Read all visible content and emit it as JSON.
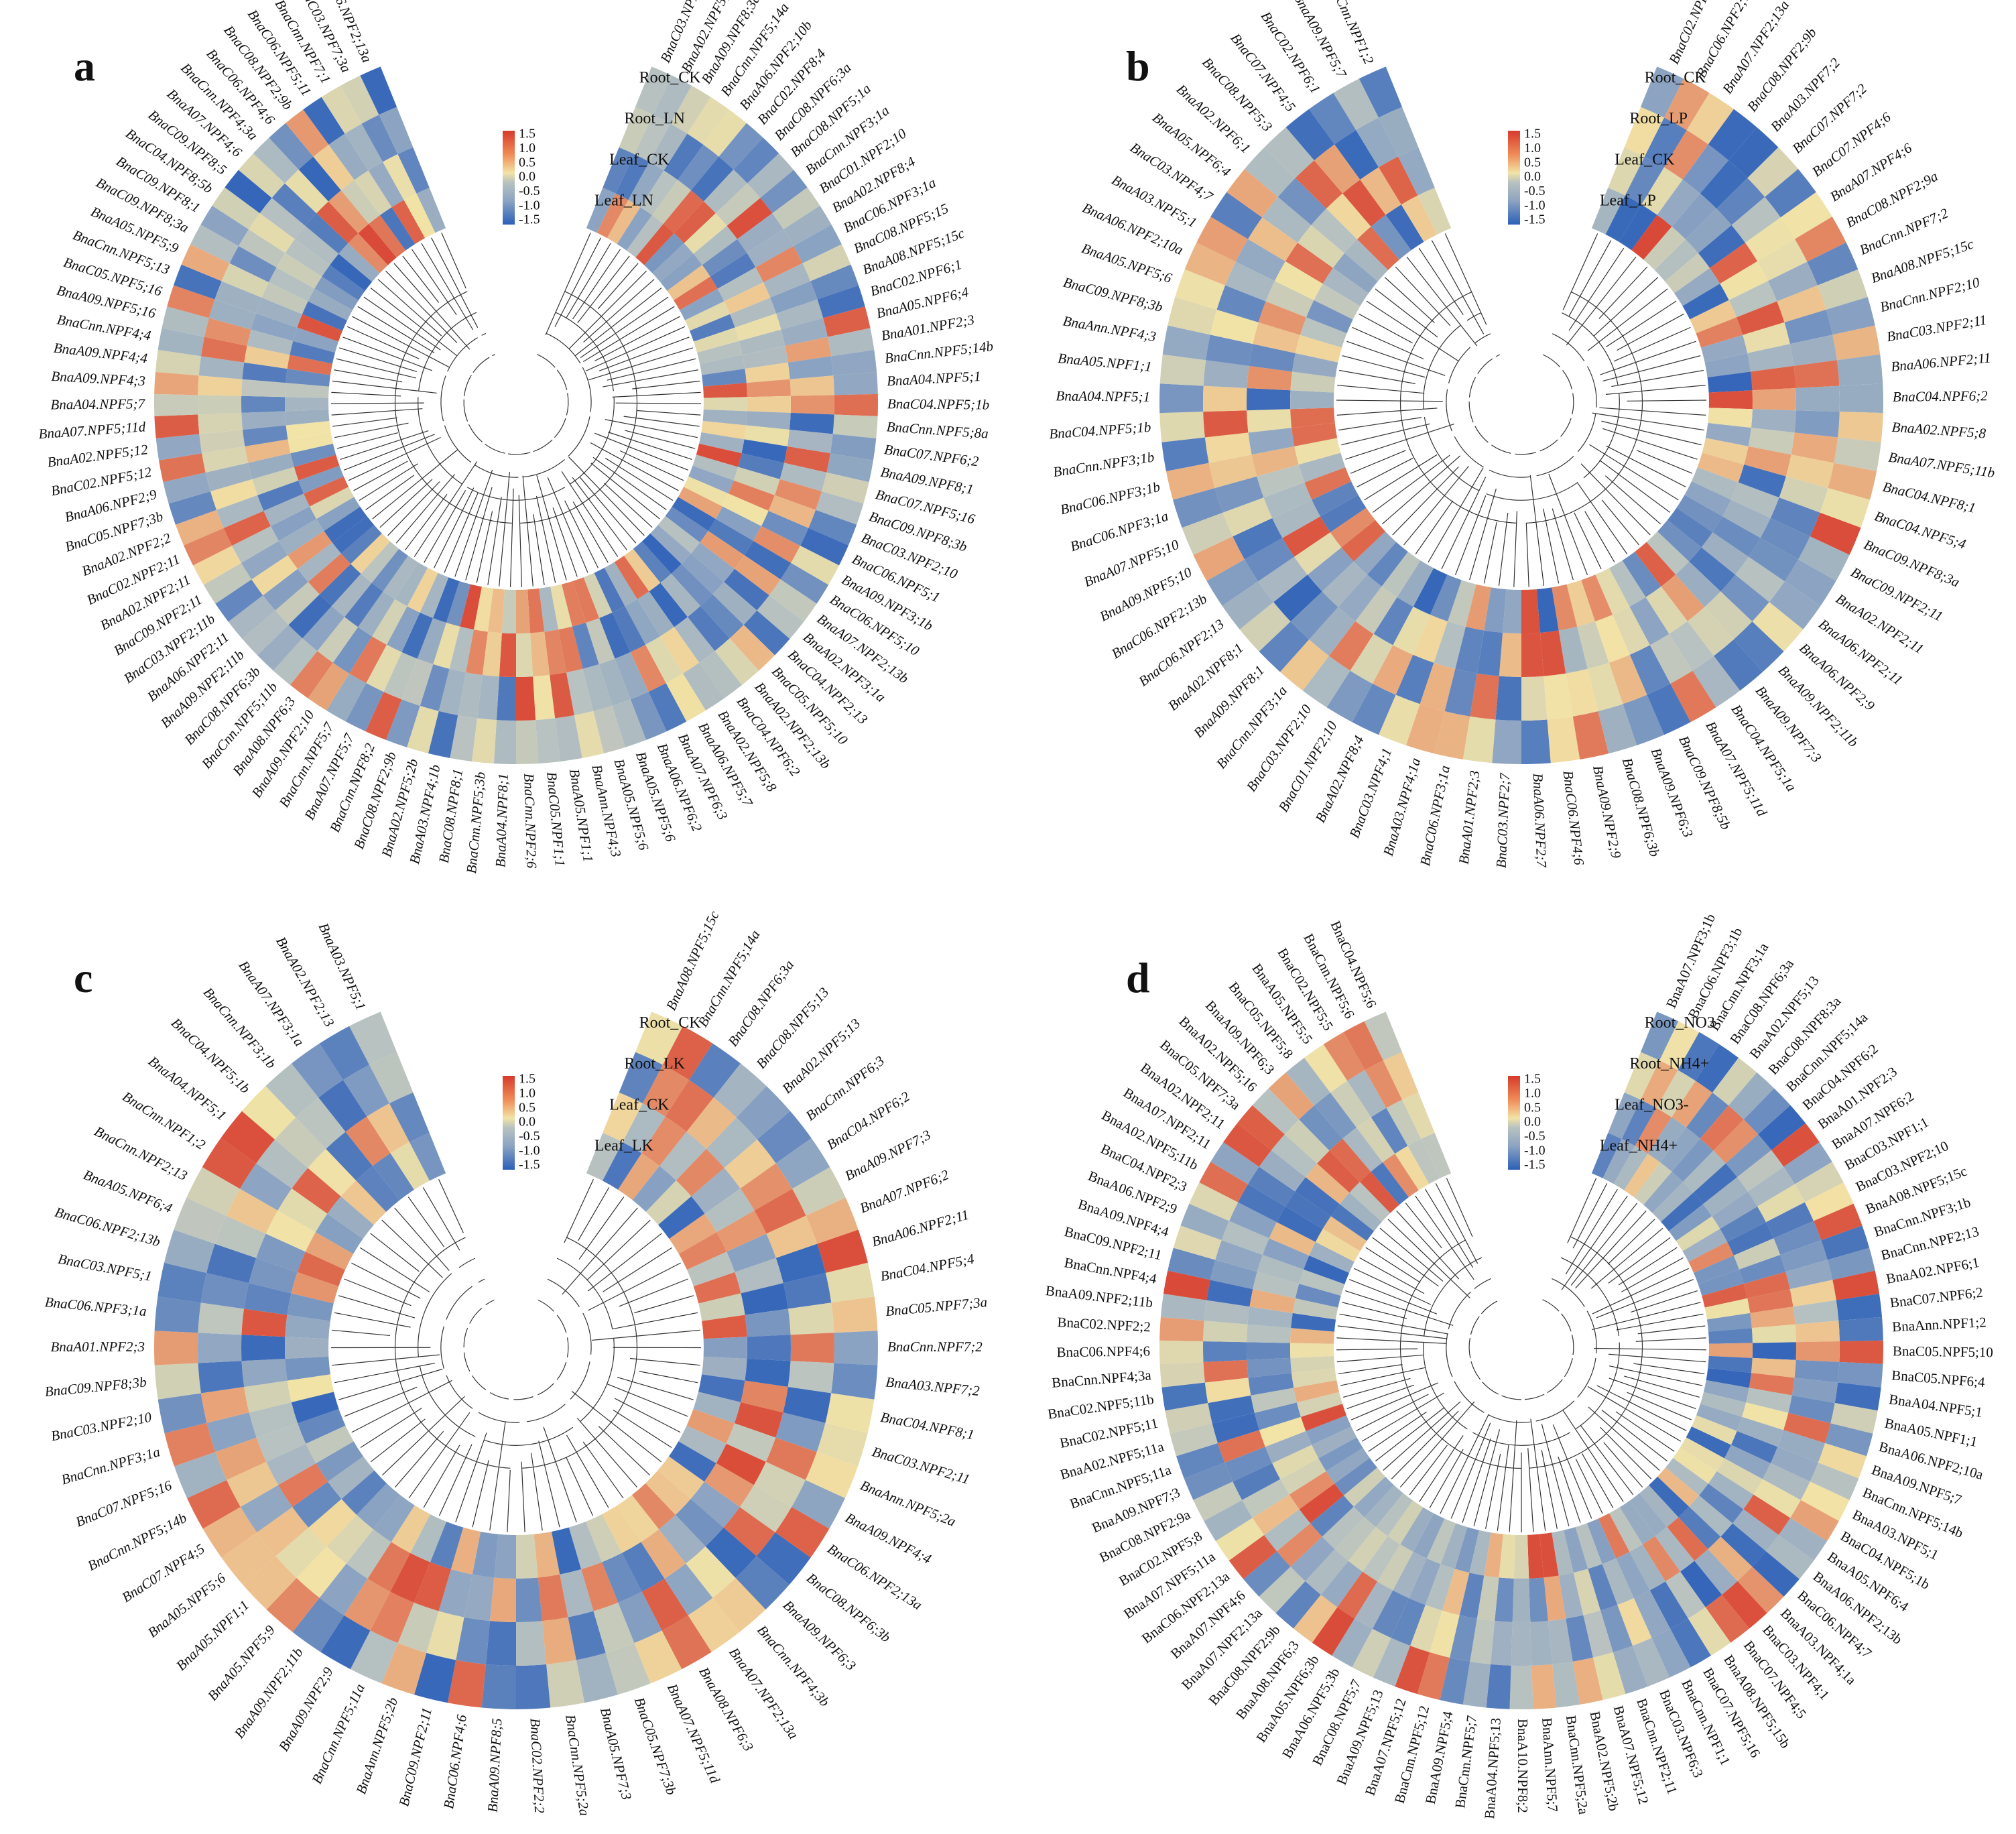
{
  "colors": {
    "scale_low": "#2b5fb8",
    "scale_mid_low": "#8ba3c2",
    "scale_mid": "#b8c2c0",
    "scale_mid_high": "#f2e3a6",
    "scale_high": "#d63a2c"
  },
  "legend_ticks": [
    "1.5",
    "1.0",
    "0.5",
    "0.0",
    "-0.5",
    "-1.0",
    "-1.5"
  ],
  "chart_data": [
    {
      "type": "heatmap",
      "layout": "circular",
      "panel": "a",
      "tracks": [
        "Root_CK",
        "Root_LN",
        "Leaf_CK",
        "Leaf_LN"
      ],
      "color_range": [
        -1.5,
        1.5
      ],
      "left_genes": [
        "BnaC06.NPF2;13a",
        "BnaC03.NPF7;3a",
        "BnaCnn.NPF7;1",
        "BnaC06.NPF5;11",
        "BnaC08.NPF2;9b",
        "BnaC06.NPF4;6",
        "BnaCnn.NPF4;3a",
        "BnaA07.NPF4;6",
        "BnaC09.NPF8;5",
        "BnaC04.NPF8;5b",
        "BnaC09.NPF8;1",
        "BnaC09.NPF8;3a",
        "BnaA05.NPF5;9",
        "BnaCnn.NPF5;13",
        "BnaC05.NPF5;16",
        "BnaA09.NPF5;16",
        "BnaCnn.NPF4;4",
        "BnaA09.NPF4;4",
        "BnaA09.NPF4;3",
        "BnaA04.NPF5;7",
        "BnaA07.NPF5;11d",
        "BnaA02.NPF5;12",
        "BnaC02.NPF5;12",
        "BnaA06.NPF2;9",
        "BnaC05.NPF7;3b",
        "BnaA02.NPF2;2",
        "BnaC02.NPF2;11",
        "BnaA02.NPF2;11",
        "BnaC09.NPF2;11",
        "BnaC03.NPF2;11b",
        "BnaA06.NPF2;11",
        "BnaA09.NPF2;11b",
        "BnaC08.NPF6;3b",
        "BnaCnn.NPF5;11b",
        "BnaA08.NPF6;3",
        "BnaA09.NPF2;10",
        "BnaCnn.NPF5;7",
        "BnaA07.NPF5;7",
        "BnaCnn.NPF8;2",
        "BnaC08.NPF2;9b",
        "BnaA02.NPF5;2b",
        "BnaA03.NPF4;1b",
        "BnaC08.NPF8;1",
        "BnaCnn.NPF5;3b",
        "BnaA04.NPF8;1",
        "BnaCnn.NPF2;6",
        "BnaC05.NPF1;1",
        "BnaA05.NPF1;1",
        "BnaAnn.NPF4;3",
        "BnaA05.NPF5;6"
      ],
      "right_genes": [
        "BnaC03.NPF1;1",
        "BnaA02.NPF5;13",
        "BnaA09.NPF8;3a",
        "BnaCnn.NPF5;14a",
        "BnaA06.NPF2;10b",
        "BnaC02.NPF8;4",
        "BnaC08.NPF6;3a",
        "BnaC08.NPF5;1a",
        "BnaCnn.NPF3;1a",
        "BnaC01.NPF2;10",
        "BnaA02.NPF8;4",
        "BnaC06.NPF3;1a",
        "BnaC08.NPF5;15",
        "BnaA08.NPF5;15c",
        "BnaC02.NPF6;1",
        "BnaA05.NPF6;4",
        "BnaA01.NPF2;3",
        "BnaCnn.NPF5;14b",
        "BnaA04.NPF5;1",
        "BnaC04.NPF5;1b",
        "BnaCnn.NPF5;8a",
        "BnaC07.NPF6;2",
        "BnaA09.NPF8;1",
        "BnaC07.NPF5;16",
        "BnaC09.NPF8;3b",
        "BnaC03.NPF2;10",
        "BnaC06.NPF5;1",
        "BnaA09.NPF3;1b",
        "BnaC06.NPF5;10",
        "BnaA07.NPF2;13b",
        "BnaA02.NPF3;1a",
        "BnaC04.NPF2;13",
        "BnaC05.NPF5;10",
        "BnaA02.NPF2;13b",
        "BnaC04.NPF6;2",
        "BnaA02.NPF5;8",
        "BnaA06.NPF5;7",
        "BnaA07.NPF6;3",
        "BnaA06.NPF6;2",
        "BnaA05.NPF5;6"
      ]
    },
    {
      "type": "heatmap",
      "layout": "circular",
      "panel": "b",
      "tracks": [
        "Root_CK",
        "Root_LP",
        "Leaf_CK",
        "Leaf_LP"
      ],
      "color_range": [
        -1.5,
        1.5
      ],
      "left_genes": [
        "BnaCnn.NPF1;2",
        "BnaA09.NPF5;7",
        "BnaC02.NPF6;1",
        "BnaC07.NPF4;5",
        "BnaC08.NPF5;3",
        "BnaA02.NPF6;1",
        "BnaA05.NPF6;4",
        "BnaC03.NPF4;7",
        "BnaA03.NPF5;1",
        "BnaA06.NPF2;10a",
        "BnaA05.NPF5;6",
        "BnaC09.NPF8;3b",
        "BnaAnn.NPF4;3",
        "BnaA05.NPF1;1",
        "BnaA04.NPF5;1",
        "BnaC04.NPF5;1b",
        "BnaCnn.NPF3;1b",
        "BnaC06.NPF3;1b",
        "BnaC06.NPF3;1a",
        "BnaA07.NPF5;10",
        "BnaA09.NPF5;10",
        "BnaC06.NPF2;13b",
        "BnaC06.NPF2;13",
        "BnaA02.NPF8;1",
        "BnaA09.NPF8;1",
        "BnaCnn.NPF3;1a",
        "BnaC03.NPF2;10",
        "BnaC01.NPF2;10",
        "BnaA02.NPF8;4",
        "BnaC03.NPF4;1",
        "BnaA03.NPF4;1a",
        "BnaC06.NPF3;1a",
        "BnaA01.NPF2;3",
        "BnaC03.NPF2;7",
        "BnaA06.NPF2;7",
        "BnaC06.NPF4;6",
        "BnaA09.NPF2;9",
        "BnaC08.NPF6;3b",
        "BnaA09.NPF6;3",
        "BnaC09.NPF8;5b",
        "BnaA07.NPF5;11d"
      ],
      "right_genes": [
        "BnaC02.NPF5;3",
        "BnaC06.NPF2;13a",
        "BnaA07.NPF2;13a",
        "BnaC08.NPF2;9b",
        "BnaA03.NPF7;2",
        "BnaC07.NPF7;2",
        "BnaC07.NPF4;6",
        "BnaA07.NPF4;6",
        "BnaC08.NPF2;9a",
        "BnaCnn.NPF7;2",
        "BnaA08.NPF5;15c",
        "BnaCnn.NPF2;10",
        "BnaC03.NPF2;11",
        "BnaA06.NPF2;11",
        "BnaC04.NPF6;2",
        "BnaA02.NPF5;8",
        "BnaA07.NPF5;11b",
        "BnaC04.NPF8;1",
        "BnaC04.NPF5;4",
        "BnaC09.NPF8;3a",
        "BnaC09.NPF2;11",
        "BnaA02.NPF2;11",
        "BnaA06.NPF2;11",
        "BnaA06.NPF2;9",
        "BnaA09.NPF2;11b",
        "BnaA09.NPF7;3",
        "BnaC04.NPF5;1a"
      ]
    },
    {
      "type": "heatmap",
      "layout": "circular",
      "panel": "c",
      "tracks": [
        "Root_CK",
        "Root_LK",
        "Leaf_CK",
        "Leaf_LK"
      ],
      "color_range": [
        -1.5,
        1.5
      ],
      "left_genes": [
        "BnaA03.NPF5;1",
        "BnaA02.NPF2;13",
        "BnaA07.NPF3;1a",
        "BnaCnn.NPF3;1b",
        "BnaC04.NPF5;1b",
        "BnaA04.NPF5;1",
        "BnaCnn.NPF1;2",
        "BnaCnn.NPF2;13",
        "BnaA05.NPF6;4",
        "BnaC06.NPF2;13b",
        "BnaC03.NPF5;1",
        "BnaC06.NPF3;1a",
        "BnaA01.NPF2;3",
        "BnaC09.NPF8;3b",
        "BnaC03.NPF2;10",
        "BnaCnn.NPF3;1a",
        "BnaC07.NPF5;16",
        "BnaCnn.NPF5;14b",
        "BnaC07.NPF4;5",
        "BnaA05.NPF5;6",
        "BnaA05.NPF1;1",
        "BnaA05.NPF5;9",
        "BnaA09.NPF2;11b",
        "BnaA09.NPF2;9",
        "BnaCnn.NPF5;11a",
        "BnaAnn.NPF5;2b",
        "BnaC09.NPF2;11",
        "BnaC06.NPF4;6",
        "BnaA09.NPF8;5",
        "BnaC02.NPF2;2",
        "BnaCnn.NPF5;2a",
        "BnaA05.NPF7;3",
        "BnaC05.NPF7;3b",
        "BnaA07.NPF5;11d"
      ],
      "right_genes": [
        "BnaA08.NPF5;15c",
        "BnaCnn.NPF5;14a",
        "BnaC08.NPF6;3a",
        "BnaC08.NPF5;13",
        "BnaA02.NPF5;13",
        "BnaCnn.NPF6;3",
        "BnaC04.NPF6;2",
        "BnaA09.NPF7;3",
        "BnaA07.NPF6;2",
        "BnaA06.NPF2;11",
        "BnaC04.NPF5;4",
        "BnaC05.NPF7;3a",
        "BnaCnn.NPF7;2",
        "BnaA03.NPF7;2",
        "BnaC04.NPF8;1",
        "BnaC03.NPF2;11",
        "BnaAnn.NPF5;2a",
        "BnaA09.NPF4;4",
        "BnaC06.NPF2;13a",
        "BnaC08.NPF6;3b",
        "BnaA09.NPF6;3",
        "BnaCnn.NPF4;3b",
        "BnaA07.NPF2;13a",
        "BnaA08.NPF6;3"
      ]
    },
    {
      "type": "heatmap",
      "layout": "circular",
      "panel": "d",
      "tracks": [
        "Root_NO3-",
        "Root_NH4+",
        "Leaf_NO3-",
        "Leaf_NH4+"
      ],
      "color_range": [
        -1.5,
        1.5
      ],
      "left_genes": [
        "BnaC04.NPF5;6",
        "BnaCnn.NPF5;6",
        "BnaC02.NPF5;5",
        "BnaA05.NPF5;5",
        "BnaC05.NPF5;8",
        "BnaA09.NPF6;3",
        "BnaA02.NPF5;16",
        "BnaC05.NPF7;3a",
        "BnaA02.NPF2;11",
        "BnaA07.NPF2;11",
        "BnaA02.NPF5;11b",
        "BnaC04.NPF2;3",
        "BnaA06.NPF2;9",
        "BnaA09.NPF4;4",
        "BnaC09.NPF2;11",
        "BnaCnn.NPF4;4",
        "BnaA09.NPF2;11b",
        "BnaC02.NPF2;2",
        "BnaC06.NPF4;6",
        "BnaCnn.NPF4;3a",
        "BnaC02.NPF5;11b",
        "BnaC02.NPF5;11",
        "BnaA02.NPF5;11a",
        "BnaCnn.NPF5;11a",
        "BnaA09.NPF7;3",
        "BnaC08.NPF2;9a",
        "BnaC02.NPF5;8",
        "BnaA07.NPF5;11a",
        "BnaC06.NPF2;13a",
        "BnaA07.NPF4;6",
        "BnaA07.NPF2;13a",
        "BnaC08.NPF2;9b",
        "BnaA08.NPF6;3",
        "BnaA05.NPF6;3b",
        "BnaA06.NPF5;3b",
        "BnaC08.NPF5;7",
        "BnaA09.NPF5;13",
        "BnaA07.NPF5;12",
        "BnaCnn.NPF5;12",
        "BnaA09.NPF5;4",
        "BnaCnn.NPF5;7",
        "BnaA04.NPF5;13",
        "BnaA10.NPF8;2"
      ],
      "right_genes": [
        "BnaA07.NPF3;1b",
        "BnaC06.NPF3;1b",
        "BnaCnn.NPF3;1a",
        "BnaC08.NPF6;3a",
        "BnaA02.NPF5;13",
        "BnaC08.NPF8;3a",
        "BnaCnn.NPF5;14a",
        "BnaC04.NPF6;2",
        "BnaA01.NPF2;3",
        "BnaA07.NPF6;2",
        "BnaC03.NPF1;1",
        "BnaC03.NPF2;10",
        "BnaA08.NPF5;15c",
        "BnaCnn.NPF3;1b",
        "BnaCnn.NPF2;13",
        "BnaA02.NPF6;1",
        "BnaC07.NPF6;2",
        "BnaAnn.NPF1;2",
        "BnaC05.NPF5;10",
        "BnaC05.NPF6;4",
        "BnaA04.NPF5;1",
        "BnaA05.NPF1;1",
        "BnaA06.NPF2;10a",
        "BnaA09.NPF5;7",
        "BnaCnn.NPF5;14b",
        "BnaA03.NPF5;1",
        "BnaC04.NPF5;1b",
        "BnaA05.NPF6;4",
        "BnaA06.NPF2;13b",
        "BnaC06.NPF4;7",
        "BnaA03.NPF4;1a",
        "BnaC03.NPF4;1",
        "BnaC07.NPF4;5",
        "BnaA08.NPF5;15b",
        "BnaC07.NPF5;16",
        "BnaCnn.NPF1;1",
        "BnaC03.NPF6;3",
        "BnaCnn.NPF2;11",
        "BnaA07.NPF5;12",
        "BnaA02.NPF5;2b",
        "BnaCnn.NPF5;2a",
        "BnaAnn.NPF5;7"
      ]
    }
  ]
}
